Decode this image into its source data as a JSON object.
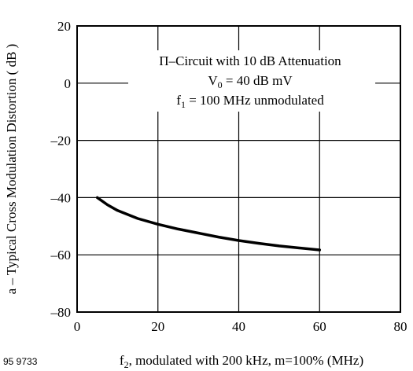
{
  "chart_data": {
    "type": "line",
    "ylabel": "a – Typical Cross Modulation Distortion ( dB )",
    "xlabel": {
      "prefix": "f",
      "sub": "2",
      "rest": ", modulated with 200 kHz, m=100% (MHz)"
    },
    "figure_id": "95 9733",
    "xlim": [
      0,
      80
    ],
    "ylim": [
      -80,
      20
    ],
    "x_ticks": [
      "0",
      "20",
      "40",
      "60",
      "80"
    ],
    "y_ticks": [
      "20",
      "0",
      "–20",
      "–40",
      "–60",
      "–80"
    ],
    "grid": true,
    "annotations": {
      "line1": "Π–Circuit with 10 dB Attenuation",
      "line2": {
        "prefix": "V",
        "sub": "0",
        "rest": " = 40 dB mV"
      },
      "line3": {
        "prefix": "f",
        "sub": "1",
        "rest": " = 100 MHz unmodulated"
      }
    },
    "series": [
      {
        "x": [
          5,
          7.5,
          10,
          15,
          20,
          25,
          30,
          35,
          40,
          45,
          50,
          55,
          60
        ],
        "y": [
          -40,
          -42.5,
          -44.5,
          -47.3,
          -49.3,
          -51.0,
          -52.4,
          -53.8,
          -55.0,
          -56.0,
          -56.9,
          -57.6,
          -58.3
        ],
        "color": "#000000"
      }
    ]
  }
}
